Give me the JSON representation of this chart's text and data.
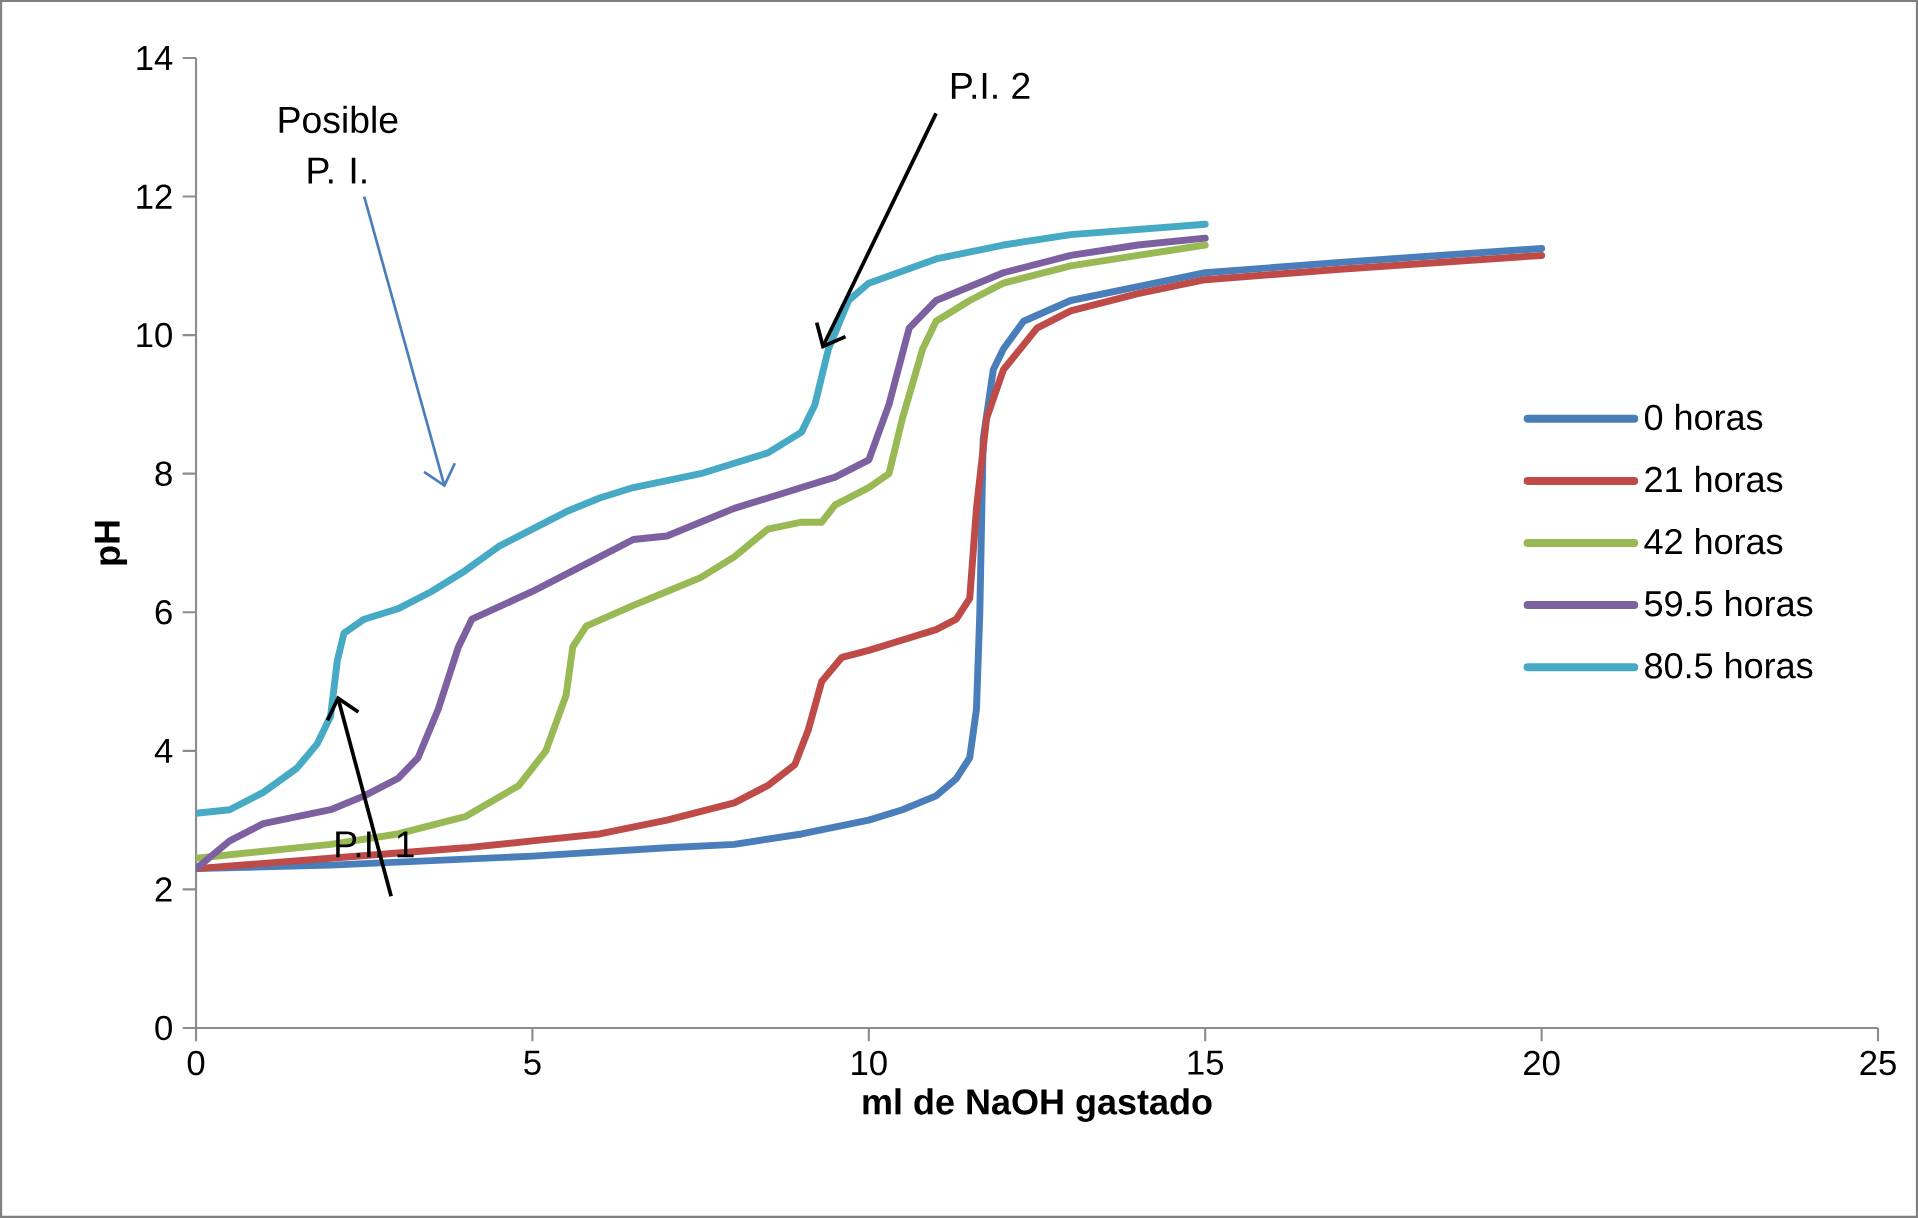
{
  "chart_data": {
    "type": "line",
    "xlabel": "ml de NaOH gastado",
    "ylabel": "pH",
    "xlim": [
      0,
      25
    ],
    "ylim": [
      0,
      14
    ],
    "xticks": [
      0,
      5,
      10,
      15,
      20,
      25
    ],
    "yticks": [
      0,
      2,
      4,
      6,
      8,
      10,
      12,
      14
    ],
    "grid": false,
    "legend": "right",
    "line_style": "solid",
    "annotations": [
      "Posible P. I.",
      {
        "text": "P.I. 1",
        "x": 2.1,
        "y": 4.8
      },
      {
        "text": "P.I. 2",
        "x": 9.3,
        "y": 9.8
      }
    ],
    "series": [
      {
        "name": "0 horas",
        "color": "#4a7ebb",
        "x": [
          0,
          2,
          5,
          7,
          8,
          9,
          10,
          10.5,
          11,
          11.3,
          11.5,
          11.6,
          11.65,
          11.7,
          11.85,
          12,
          12.3,
          13,
          14,
          15,
          17,
          20
        ],
        "values": [
          2.3,
          2.35,
          2.48,
          2.6,
          2.65,
          2.8,
          3.0,
          3.15,
          3.35,
          3.6,
          3.9,
          4.6,
          6,
          8.5,
          9.5,
          9.8,
          10.2,
          10.5,
          10.7,
          10.9,
          11.05,
          11.25
        ]
      },
      {
        "name": "21 horas",
        "color": "#be4b48",
        "x": [
          0,
          2,
          4,
          5,
          6,
          7,
          8,
          8.5,
          8.9,
          9.1,
          9.3,
          9.6,
          10,
          10.5,
          11,
          11.3,
          11.5,
          11.6,
          11.75,
          12,
          12.5,
          13,
          14,
          15,
          17,
          20
        ],
        "values": [
          2.3,
          2.45,
          2.6,
          2.7,
          2.8,
          3.0,
          3.25,
          3.5,
          3.8,
          4.3,
          5.0,
          5.35,
          5.45,
          5.6,
          5.75,
          5.9,
          6.2,
          7.5,
          8.8,
          9.5,
          10.1,
          10.35,
          10.6,
          10.8,
          10.95,
          11.15
        ]
      },
      {
        "name": "42 horas",
        "color": "#98b954",
        "x": [
          0,
          2,
          3,
          4,
          4.8,
          5.2,
          5.5,
          5.6,
          5.8,
          6.5,
          7,
          7.5,
          8,
          8.5,
          9,
          9.3,
          9.5,
          10,
          10.3,
          10.5,
          10.8,
          11,
          11.5,
          12,
          13,
          14,
          15
        ],
        "values": [
          2.45,
          2.65,
          2.8,
          3.05,
          3.5,
          4.0,
          4.8,
          5.5,
          5.8,
          6.1,
          6.3,
          6.5,
          6.8,
          7.2,
          7.3,
          7.3,
          7.55,
          7.8,
          8.0,
          8.8,
          9.8,
          10.2,
          10.5,
          10.75,
          11.0,
          11.15,
          11.3
        ]
      },
      {
        "name": "59.5 horas",
        "color": "#7d60a0",
        "x": [
          0,
          0.5,
          1,
          2,
          2.5,
          3,
          3.3,
          3.6,
          3.9,
          4.1,
          5,
          6,
          6.5,
          7,
          7.5,
          8,
          8.5,
          9,
          9.5,
          10,
          10.3,
          10.6,
          11,
          12,
          13,
          14,
          15
        ],
        "values": [
          2.3,
          2.7,
          2.95,
          3.15,
          3.35,
          3.6,
          3.9,
          4.6,
          5.5,
          5.9,
          6.3,
          6.8,
          7.05,
          7.1,
          7.3,
          7.5,
          7.65,
          7.8,
          7.95,
          8.2,
          9.0,
          10.1,
          10.5,
          10.9,
          11.15,
          11.3,
          11.4
        ]
      },
      {
        "name": "80.5 horas",
        "color": "#46aac5",
        "x": [
          0,
          0.5,
          1,
          1.5,
          1.8,
          2,
          2.1,
          2.2,
          2.5,
          3,
          3.5,
          4,
          4.5,
          5,
          5.5,
          6,
          6.5,
          7,
          7.5,
          8,
          8.5,
          9,
          9.2,
          9.4,
          9.7,
          10,
          11,
          12,
          13,
          15
        ],
        "values": [
          3.1,
          3.15,
          3.4,
          3.75,
          4.1,
          4.5,
          5.3,
          5.7,
          5.9,
          6.05,
          6.3,
          6.6,
          6.95,
          7.2,
          7.45,
          7.65,
          7.8,
          7.9,
          8.0,
          8.15,
          8.3,
          8.6,
          9.0,
          9.8,
          10.5,
          10.75,
          11.1,
          11.3,
          11.45,
          11.6
        ]
      }
    ]
  }
}
